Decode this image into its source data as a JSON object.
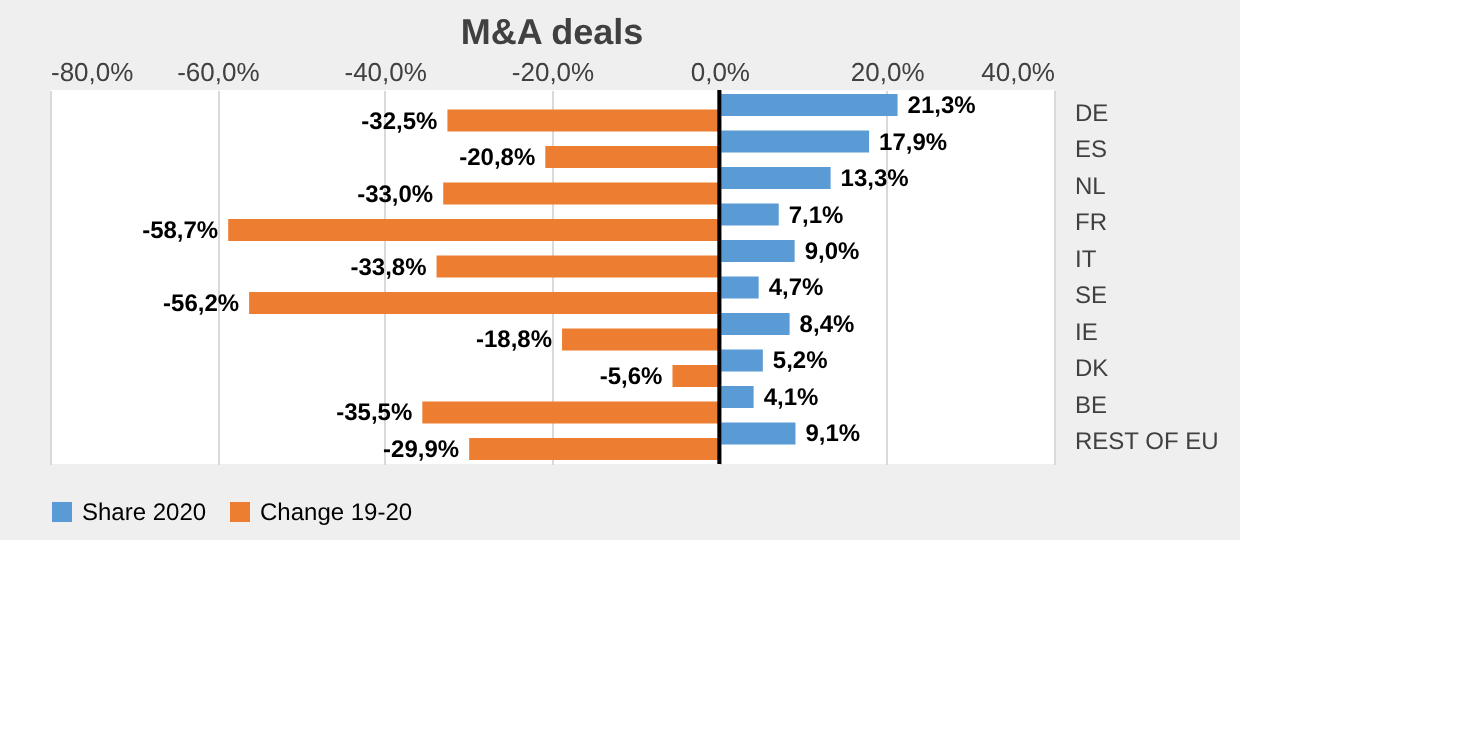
{
  "chart_data": {
    "type": "bar",
    "orientation": "horizontal",
    "title": "M&A deals",
    "categories": [
      "DE",
      "ES",
      "NL",
      "FR",
      "IT",
      "SE",
      "IE",
      "DK",
      "BE",
      "REST OF EU"
    ],
    "series": [
      {
        "name": "Share 2020",
        "color": "#5b9bd5",
        "values": [
          21.3,
          17.9,
          13.3,
          7.1,
          9.0,
          4.7,
          8.4,
          5.2,
          4.1,
          9.1
        ],
        "value_labels": [
          "21,3%",
          "17,9%",
          "13,3%",
          "7,1%",
          "9,0%",
          "4,7%",
          "8,4%",
          "5,2%",
          "4,1%",
          "9,1%"
        ]
      },
      {
        "name": "Change 19-20",
        "color": "#ed7d31",
        "values": [
          -32.5,
          -20.8,
          -33.0,
          -58.7,
          -33.8,
          -56.2,
          -18.8,
          -5.6,
          -35.5,
          -29.9
        ],
        "value_labels": [
          "-32,5%",
          "-20,8%",
          "-33,0%",
          "-58,7%",
          "-33,8%",
          "-56,2%",
          "-18,8%",
          "-5,6%",
          "-35,5%",
          "-29,9%"
        ]
      }
    ],
    "xlim": [
      -80,
      40
    ],
    "xticks": [
      {
        "value": -80,
        "label": "-80,0%"
      },
      {
        "value": -60,
        "label": "-60,0%"
      },
      {
        "value": -40,
        "label": "-40,0%"
      },
      {
        "value": -20,
        "label": "-20,0%"
      },
      {
        "value": 0,
        "label": "0,0%"
      },
      {
        "value": 20,
        "label": "20,0%"
      },
      {
        "value": 40,
        "label": "40,0%"
      }
    ],
    "grid": "x",
    "legend": "bottom"
  }
}
